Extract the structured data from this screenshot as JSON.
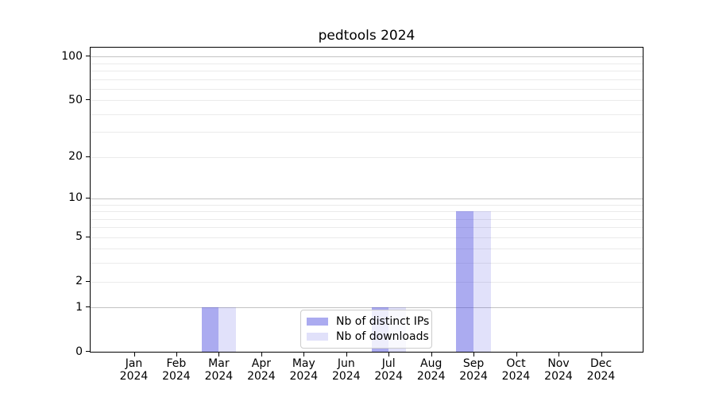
{
  "chart_data": {
    "type": "bar",
    "title": "pedtools 2024",
    "categories": [
      "Jan",
      "Feb",
      "Mar",
      "Apr",
      "May",
      "Jun",
      "Jul",
      "Aug",
      "Sep",
      "Oct",
      "Nov",
      "Dec"
    ],
    "tick_year": "2024",
    "series": [
      {
        "name": "Nb of distinct IPs",
        "color": "rgba(68,68,221,0.45)",
        "values": [
          0,
          0,
          1,
          0,
          0,
          0,
          1,
          0,
          8,
          0,
          0,
          0
        ]
      },
      {
        "name": "Nb of downloads",
        "color": "rgba(68,68,221,0.16)",
        "values": [
          0,
          0,
          1,
          0,
          0,
          0,
          1,
          0,
          8,
          0,
          0,
          0
        ]
      }
    ],
    "xlabel": "",
    "ylabel": "",
    "yscale": "log1p",
    "ylim": [
      0,
      115
    ],
    "yticks": [
      0,
      1,
      2,
      5,
      10,
      20,
      50,
      100
    ],
    "grid": {
      "orientation": "horizontal",
      "major_lines": [
        1,
        10,
        100
      ],
      "minor_lines": [
        2,
        3,
        4,
        5,
        6,
        7,
        8,
        9,
        20,
        30,
        40,
        50,
        60,
        70,
        80,
        90
      ],
      "major_color": "#c3c3c3",
      "minor_color": "#ebebeb"
    },
    "legend_position": "inside lower-center",
    "spine_color": "#000000",
    "background_color": "#ffffff"
  }
}
